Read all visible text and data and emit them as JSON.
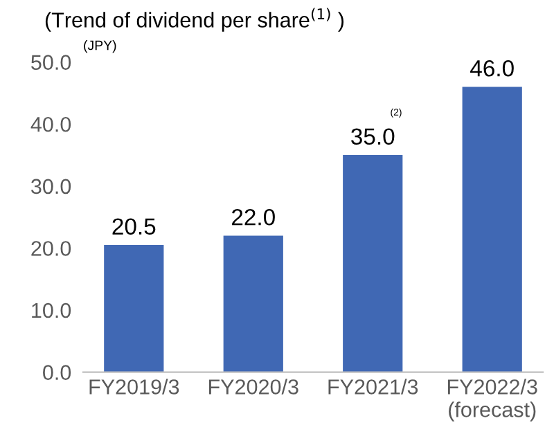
{
  "chart_data": {
    "type": "bar",
    "title": "(Trend of dividend per share$^{(1)}$ )",
    "ylabel": "(JPY)",
    "categories": [
      "FY2019/3",
      "FY2020/3",
      "FY2021/3",
      "FY2022/3\n(forecast)"
    ],
    "values": [
      20.5,
      22.0,
      35.0,
      46.0
    ],
    "color": "#4068b4",
    "value_labels": [
      "20.5",
      "22.0",
      "35.0",
      "46.0"
    ],
    "annotations": [
      "(2)"
    ],
    "ylim": [
      0,
      50
    ],
    "yticks": [
      {
        "value": 0,
        "label": "0.0"
      },
      {
        "value": 10,
        "label": "10.0"
      },
      {
        "value": 20,
        "label": "20.0"
      },
      {
        "value": 30,
        "label": "30.0"
      },
      {
        "value": 40,
        "label": "40.0"
      },
      {
        "value": 50,
        "label": "50.0"
      }
    ],
    "grid": false,
    "legend": false
  }
}
